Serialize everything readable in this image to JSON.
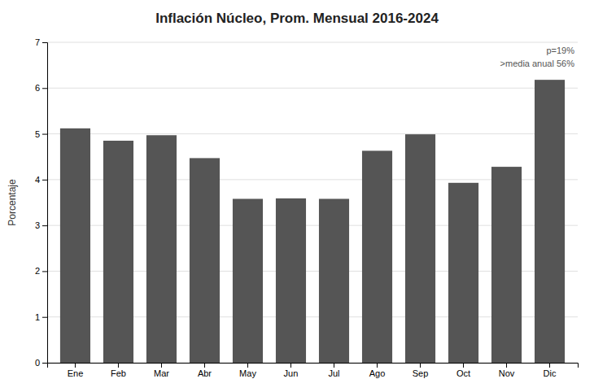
{
  "chart_data": {
    "type": "bar",
    "title": "Inflación Núcleo, Prom. Mensual 2016-2024",
    "categories": [
      "Ene",
      "Feb",
      "Mar",
      "Abr",
      "May",
      "Jun",
      "Jul",
      "Ago",
      "Sep",
      "Oct",
      "Nov",
      "Dic"
    ],
    "values": [
      5.12,
      4.85,
      4.97,
      4.47,
      3.58,
      3.59,
      3.58,
      4.63,
      4.99,
      3.93,
      4.28,
      6.18
    ],
    "color": "#555555",
    "ylabel": "Porcentaje",
    "ylim": [
      0,
      7
    ],
    "yticks": [
      0,
      1,
      2,
      3,
      4,
      5,
      6,
      7
    ],
    "grid": true,
    "annotations": [
      "p=19%",
      ">media anual 56%"
    ]
  }
}
